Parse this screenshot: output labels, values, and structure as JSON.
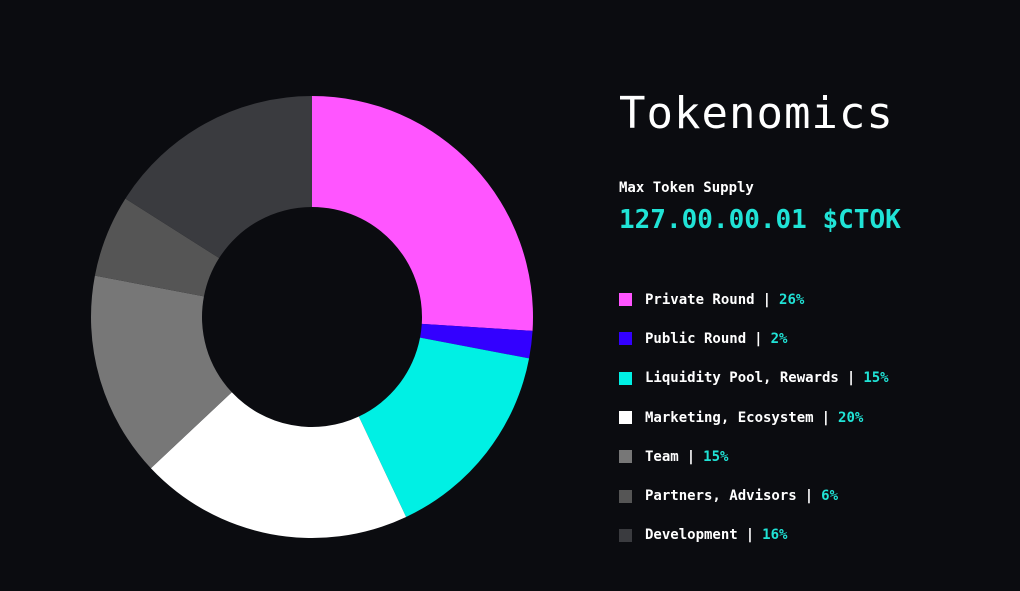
{
  "header": {
    "title": "Tokenomics"
  },
  "supply": {
    "label": "Max Token Supply",
    "value": "127.00.00.01 $CTOK"
  },
  "chart_data": {
    "type": "pie",
    "variant": "donut",
    "title": "Tokenomics",
    "separator": "|",
    "slices": [
      {
        "label": "Private Round",
        "value": 26,
        "display": "26%",
        "color": "#ff55ff"
      },
      {
        "label": "Public Round",
        "value": 2,
        "display": "2%",
        "color": "#3300ff"
      },
      {
        "label": "Liquidity Pool, Rewards",
        "value": 15,
        "display": "15%",
        "color": "#00f0e4"
      },
      {
        "label": "Marketing, Ecosystem",
        "value": 20,
        "display": "20%",
        "color": "#ffffff"
      },
      {
        "label": "Team",
        "value": 15,
        "display": "15%",
        "color": "#777777"
      },
      {
        "label": "Partners, Advisors",
        "value": 6,
        "display": "6%",
        "color": "#555555"
      },
      {
        "label": "Development",
        "value": 16,
        "display": "16%",
        "color": "#3a3b3f"
      }
    ],
    "legend_position": "right"
  }
}
